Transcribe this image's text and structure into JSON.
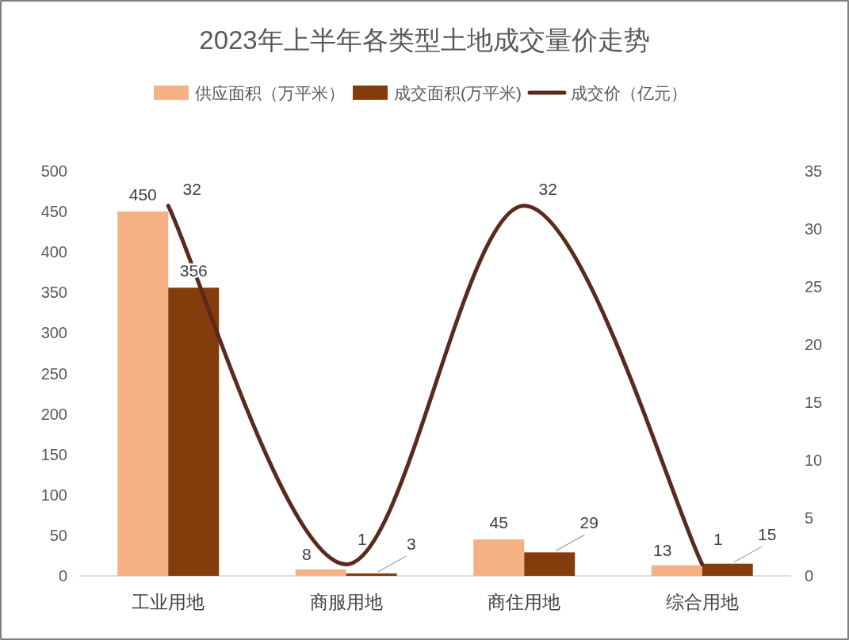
{
  "chart_data": {
    "type": "bar",
    "title": "2023年上半年各类型土地成交量价走势",
    "categories": [
      "工业用地",
      "商服用地",
      "商住用地",
      "综合用地"
    ],
    "series": [
      {
        "name": "供应面积（万平米）",
        "color": "#f4b183",
        "values": [
          450,
          8,
          45,
          13
        ]
      },
      {
        "name": "成交面积(万平米)",
        "color": "#843c0c",
        "values": [
          356,
          3,
          29,
          15
        ]
      },
      {
        "name": "成交价（亿元）",
        "type": "line",
        "axis": "y2",
        "color": "#5a2a1e",
        "values": [
          32,
          1,
          32,
          1
        ]
      }
    ],
    "ylim": [
      0,
      500
    ],
    "yticks": [
      0,
      50,
      100,
      150,
      200,
      250,
      300,
      350,
      400,
      450,
      500
    ],
    "y2lim": [
      0,
      35
    ],
    "y2ticks": [
      0,
      5,
      10,
      15,
      20,
      25,
      30,
      35
    ],
    "grid": false,
    "legend": "top",
    "data_labels": true,
    "marker": "none",
    "line_style": "solid"
  }
}
